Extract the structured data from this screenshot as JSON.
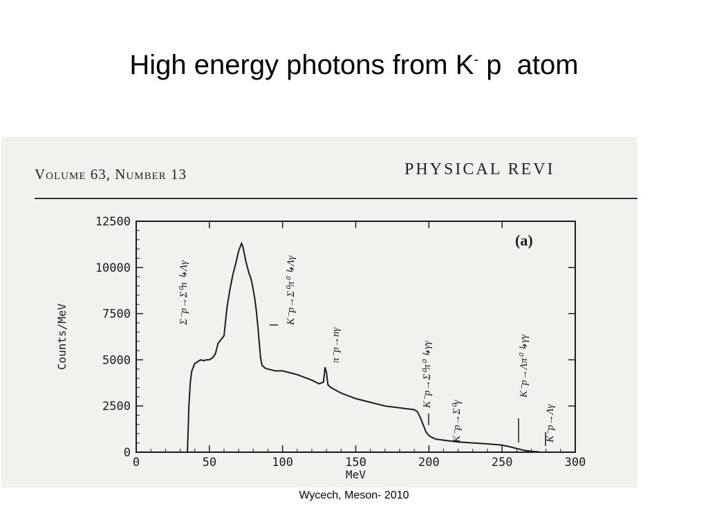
{
  "slide": {
    "title_main": "High energy photons from K",
    "title_sup": "-",
    "title_end": " p  atom",
    "caption": "Wycech, Meson- 2010"
  },
  "journal": {
    "volume": "Volume 63,  Number 13",
    "name": "PHYSICAL REVI"
  },
  "chart_data": {
    "type": "line",
    "panel_label": "(a)",
    "xlabel": "MeV",
    "ylabel": "Counts/MeV",
    "xlim": [
      0,
      300
    ],
    "ylim": [
      0,
      12500
    ],
    "x_ticks": [
      0,
      50,
      100,
      150,
      200,
      250,
      300
    ],
    "x_tick_labels": [
      "0",
      "50",
      "100",
      "150",
      "200",
      "250",
      "300"
    ],
    "y_ticks": [
      0,
      2500,
      5000,
      7500,
      10000,
      12500
    ],
    "y_tick_labels": [
      "0",
      "2500",
      "5000",
      "7500",
      "10000",
      "12500"
    ],
    "series": [
      {
        "x": [
          35,
          36,
          37,
          38,
          39,
          40,
          42,
          44,
          46,
          48,
          50,
          52,
          54,
          55,
          56,
          58,
          60,
          62,
          64,
          66,
          68,
          70,
          71,
          72,
          73,
          74,
          75,
          76,
          77,
          78,
          79,
          80,
          81,
          82,
          83,
          84,
          85,
          86,
          88,
          90,
          95,
          100,
          105,
          110,
          115,
          120,
          125,
          128,
          129,
          130,
          131,
          133,
          140,
          150,
          160,
          170,
          180,
          185,
          190,
          192,
          194,
          196,
          198,
          200,
          202,
          205,
          210,
          220,
          230,
          240,
          250,
          255,
          260,
          265,
          270,
          275
        ],
        "y": [
          0,
          2500,
          3800,
          4400,
          4600,
          4800,
          4900,
          5000,
          4950,
          5000,
          5000,
          5100,
          5300,
          5600,
          5900,
          6100,
          6300,
          7800,
          8800,
          9600,
          10200,
          10900,
          11100,
          11300,
          11100,
          10700,
          10300,
          10000,
          9700,
          9500,
          9200,
          8800,
          8300,
          7700,
          6900,
          6000,
          5100,
          4700,
          4550,
          4500,
          4400,
          4400,
          4300,
          4200,
          4050,
          3900,
          3700,
          3800,
          4600,
          4300,
          3650,
          3500,
          3200,
          2900,
          2700,
          2500,
          2400,
          2350,
          2300,
          2200,
          1900,
          1500,
          1100,
          900,
          800,
          700,
          650,
          550,
          500,
          450,
          380,
          300,
          200,
          100,
          50,
          20
        ]
      }
    ],
    "annotations": [
      "Σ⁻p→Σ⁰n ↳Λγ",
      "K⁻p→Σ⁰π⁰ ↳Λγ",
      "π⁻p→nγ",
      "K⁻p→Σ⁰π⁰ ↳γγ",
      "K⁻p→Σ⁰γ",
      "K⁻p→Λπ⁰ ↳γγ",
      "K⁻p→Λγ"
    ]
  },
  "colors": {
    "ink": "#1a1a1a",
    "scan_bg": "#f2f1ee"
  }
}
